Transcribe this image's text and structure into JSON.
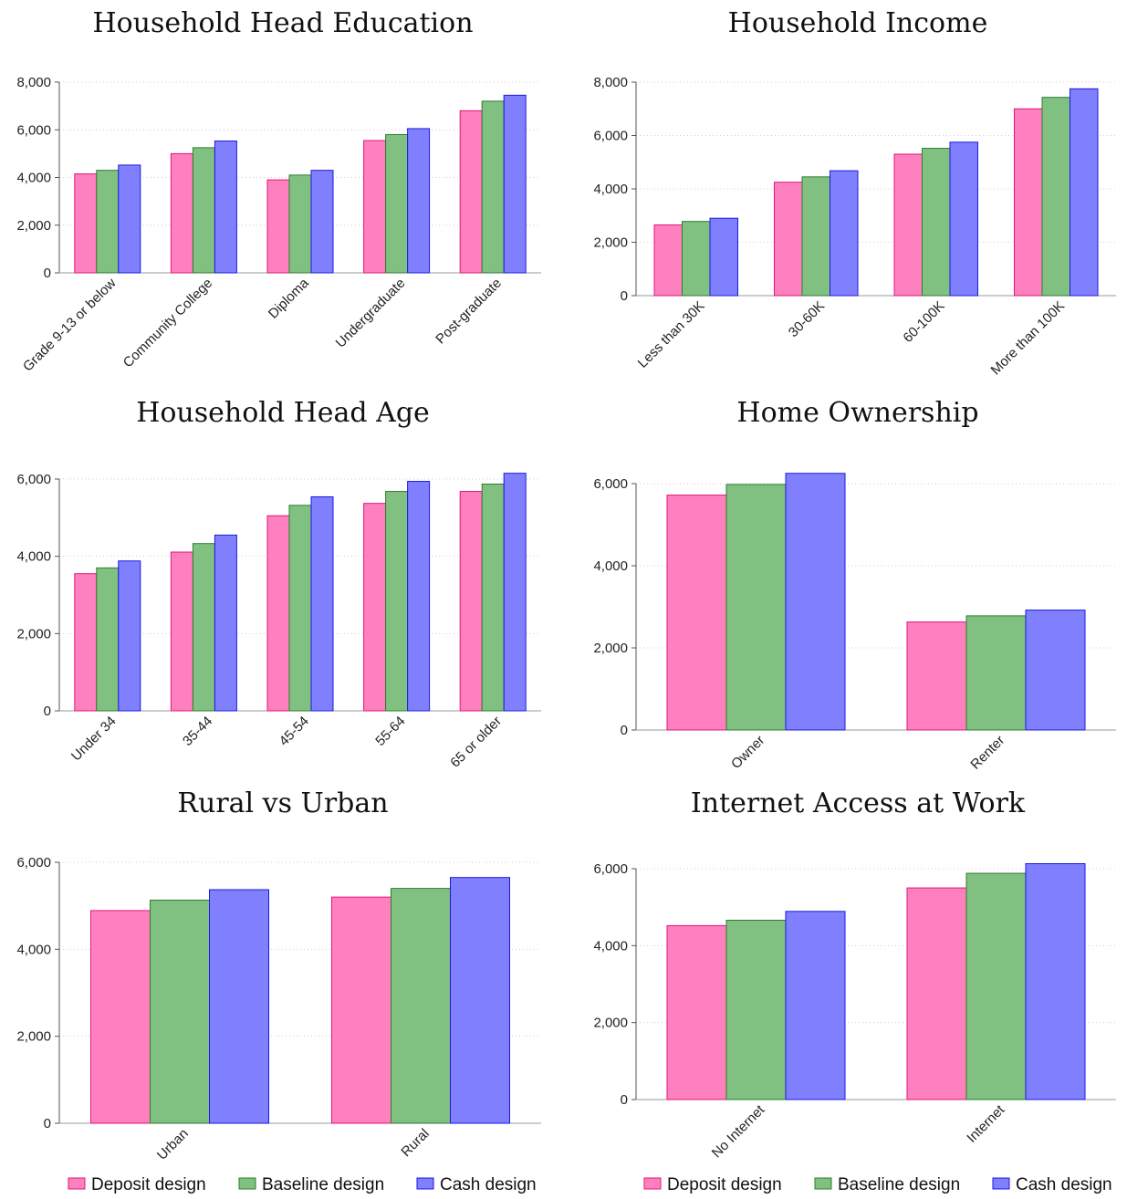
{
  "colors": {
    "deposit_fill": "#ff80bf",
    "deposit_stroke": "#e0157a",
    "baseline_fill": "#80c080",
    "baseline_stroke": "#2e7d32",
    "cash_fill": "#8080ff",
    "cash_stroke": "#1a1ae0",
    "grid": "#d0d0d0",
    "axis": "#555555"
  },
  "legend": [
    "Deposit design",
    "Baseline design",
    "Cash design"
  ],
  "chart_data": [
    {
      "type": "bar",
      "title": "Household Head Education",
      "categories": [
        "Grade 9-13 or below",
        "Community College",
        "Diploma",
        "Undergraduate",
        "Post-graduate"
      ],
      "series": [
        {
          "name": "Deposit design",
          "values": [
            4150,
            5000,
            3900,
            5550,
            6800
          ]
        },
        {
          "name": "Baseline design",
          "values": [
            4300,
            5250,
            4100,
            5800,
            7200
          ]
        },
        {
          "name": "Cash design",
          "values": [
            4520,
            5530,
            4300,
            6050,
            7450
          ]
        }
      ],
      "ylim": [
        0,
        8000
      ],
      "yticks": [
        0,
        2000,
        4000,
        6000,
        8000
      ],
      "grid": true
    },
    {
      "type": "bar",
      "title": "Household Income",
      "categories": [
        "Less than 30K",
        "30-60K",
        "60-100K",
        "More than 100K"
      ],
      "series": [
        {
          "name": "Deposit design",
          "values": [
            2650,
            4250,
            5300,
            7000
          ]
        },
        {
          "name": "Baseline design",
          "values": [
            2780,
            4450,
            5520,
            7430
          ]
        },
        {
          "name": "Cash design",
          "values": [
            2900,
            4680,
            5750,
            7750
          ]
        }
      ],
      "ylim": [
        0,
        8000
      ],
      "yticks": [
        0,
        2000,
        4000,
        6000,
        8000
      ],
      "grid": true
    },
    {
      "type": "bar",
      "title": "Household Head Age",
      "categories": [
        "Under 34",
        "35-44",
        "45-54",
        "55-64",
        "65 or older"
      ],
      "series": [
        {
          "name": "Deposit design",
          "values": [
            3550,
            4110,
            5050,
            5370,
            5680
          ]
        },
        {
          "name": "Baseline design",
          "values": [
            3700,
            4330,
            5320,
            5680,
            5870
          ]
        },
        {
          "name": "Cash design",
          "values": [
            3880,
            4550,
            5540,
            5940,
            6150
          ]
        }
      ],
      "ylim": [
        0,
        6000
      ],
      "yticks": [
        0,
        2000,
        4000,
        6000
      ],
      "grid": true
    },
    {
      "type": "bar",
      "title": "Home Ownership",
      "categories": [
        "Owner",
        "Renter"
      ],
      "series": [
        {
          "name": "Deposit design",
          "values": [
            5720,
            2630
          ]
        },
        {
          "name": "Baseline design",
          "values": [
            5980,
            2780
          ]
        },
        {
          "name": "Cash design",
          "values": [
            6250,
            2920
          ]
        }
      ],
      "ylim": [
        0,
        6000
      ],
      "yticks": [
        0,
        2000,
        4000,
        6000
      ],
      "grid": true
    },
    {
      "type": "bar",
      "title": "Rural vs Urban",
      "categories": [
        "Urban",
        "Rural"
      ],
      "series": [
        {
          "name": "Deposit design",
          "values": [
            4890,
            5200
          ]
        },
        {
          "name": "Baseline design",
          "values": [
            5130,
            5400
          ]
        },
        {
          "name": "Cash design",
          "values": [
            5370,
            5650
          ]
        }
      ],
      "ylim": [
        0,
        6000
      ],
      "yticks": [
        0,
        2000,
        4000,
        6000
      ],
      "grid": true
    },
    {
      "type": "bar",
      "title": "Internet Access at Work",
      "categories": [
        "No Internet",
        "Internet"
      ],
      "series": [
        {
          "name": "Deposit design",
          "values": [
            4520,
            5500
          ]
        },
        {
          "name": "Baseline design",
          "values": [
            4660,
            5880
          ]
        },
        {
          "name": "Cash design",
          "values": [
            4890,
            6130
          ]
        }
      ],
      "ylim": [
        0,
        6000
      ],
      "yticks": [
        0,
        2000,
        4000,
        6000
      ],
      "grid": true
    }
  ]
}
